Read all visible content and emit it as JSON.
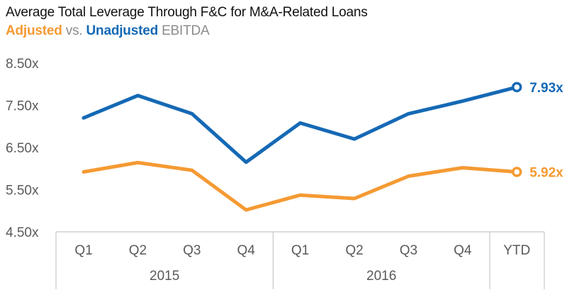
{
  "title": "Average Total Leverage Through F&C for M&A-Related Loans",
  "subtitle": {
    "part1": "Adjusted",
    "part2": " vs. ",
    "part3": "Unadjusted",
    "part4": " EBITDA"
  },
  "chart_data": {
    "type": "line",
    "categories": [
      "Q1",
      "Q2",
      "Q3",
      "Q4",
      "Q1",
      "Q2",
      "Q3",
      "Q4",
      "YTD"
    ],
    "groups": [
      {
        "label": "2015",
        "span": 4
      },
      {
        "label": "2016",
        "span": 4
      },
      {
        "label": "",
        "span": 1
      }
    ],
    "series": [
      {
        "key": "unadjusted",
        "color": "#1569b5",
        "values": [
          7.2,
          7.73,
          7.3,
          6.15,
          7.08,
          6.7,
          7.3,
          7.6,
          7.93
        ],
        "end_label": "7.93x"
      },
      {
        "key": "adjusted",
        "color": "#f59a33",
        "values": [
          5.92,
          6.14,
          5.96,
          5.02,
          5.37,
          5.29,
          5.82,
          6.02,
          5.92
        ],
        "end_label": "5.92x"
      }
    ],
    "yticks": [
      "4.50x",
      "5.50x",
      "6.50x",
      "7.50x",
      "8.50x"
    ],
    "ylim": [
      4.5,
      8.5
    ],
    "grid": false,
    "legend": "subtitle"
  }
}
